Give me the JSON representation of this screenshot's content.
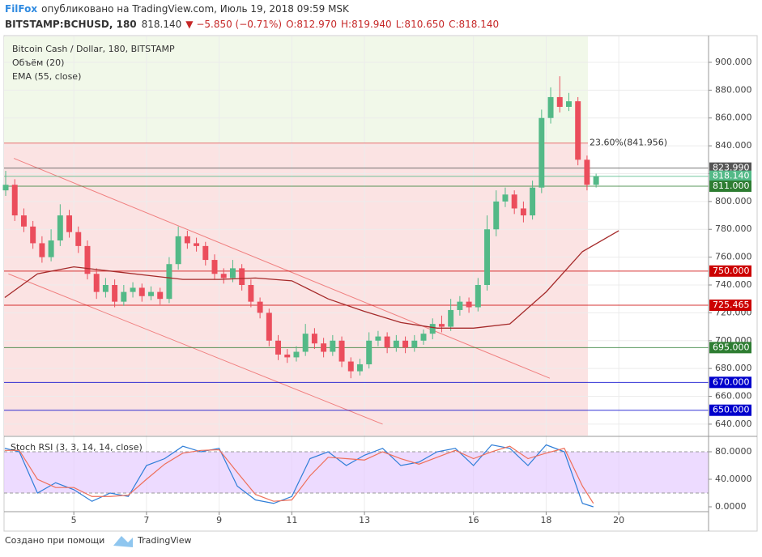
{
  "header": {
    "publisher": "FilFox",
    "published": "опубликовано на TradingView.com, Июль 19, 2018 09:59 MSK",
    "symbol": "BITSTAMP:BCHUSD, 180",
    "price": "818.140",
    "change": "▼ −5.850 (−0.71%)",
    "ohlc": [
      "O:812.970",
      "H:819.940",
      "L:810.650",
      "C:818.140"
    ]
  },
  "footer": {
    "text": "Создано при помощи",
    "brand": "TradingView"
  },
  "chart_data": [
    {
      "type": "candlestick",
      "title": "Bitcoin Cash / Dollar, 180, BITSTAMP",
      "volume_label": "Объём (20)",
      "up_color": "#53b987",
      "down_color": "#eb4d5c",
      "x": [
        3.125,
        3.375,
        3.625,
        3.875,
        4.125,
        4.375,
        4.625,
        4.875,
        5.125,
        5.375,
        5.625,
        5.875,
        6.125,
        6.375,
        6.625,
        6.875,
        7.125,
        7.375,
        7.625,
        7.875,
        8.125,
        8.375,
        8.625,
        8.875,
        9.125,
        9.375,
        9.625,
        9.875,
        10.125,
        10.375,
        10.625,
        10.875,
        11.125,
        11.375,
        11.625,
        11.875,
        12.125,
        12.375,
        12.625,
        12.875,
        13.125,
        13.375,
        13.625,
        13.875,
        14.125,
        14.375,
        14.625,
        14.875,
        15.125,
        15.375,
        15.625,
        15.875,
        16.125,
        16.375,
        16.625,
        16.875,
        17.125,
        17.375,
        17.625,
        17.875,
        18.125,
        18.375,
        18.625,
        18.875,
        19.125,
        19.375
      ],
      "open": [
        808,
        812,
        790,
        782,
        770,
        760,
        772,
        790,
        778,
        768,
        748,
        735,
        740,
        728,
        735,
        738,
        732,
        735,
        730,
        755,
        775,
        770,
        768,
        758,
        748,
        745,
        752,
        740,
        728,
        720,
        700,
        690,
        688,
        692,
        705,
        698,
        692,
        700,
        685,
        678,
        683,
        700,
        703,
        695,
        700,
        695,
        700,
        705,
        712,
        710,
        722,
        728,
        724,
        740,
        780,
        800,
        805,
        795,
        790,
        810,
        860,
        875,
        868,
        872,
        830,
        812
      ],
      "high": [
        822,
        816,
        795,
        786,
        775,
        780,
        798,
        794,
        782,
        772,
        752,
        745,
        744,
        740,
        742,
        741,
        739,
        738,
        760,
        782,
        779,
        774,
        771,
        762,
        752,
        758,
        755,
        744,
        731,
        723,
        704,
        694,
        696,
        712,
        709,
        702,
        704,
        703,
        688,
        687,
        706,
        707,
        706,
        704,
        703,
        704,
        708,
        716,
        718,
        730,
        732,
        731,
        745,
        790,
        808,
        810,
        808,
        800,
        815,
        866,
        882,
        890,
        878,
        875,
        833,
        820
      ],
      "low": [
        804,
        786,
        778,
        766,
        756,
        757,
        768,
        774,
        763,
        744,
        730,
        731,
        724,
        725,
        731,
        728,
        729,
        726,
        727,
        751,
        766,
        764,
        754,
        744,
        741,
        742,
        736,
        724,
        716,
        696,
        686,
        684,
        685,
        689,
        694,
        688,
        689,
        681,
        673,
        675,
        680,
        696,
        691,
        692,
        691,
        692,
        697,
        701,
        706,
        707,
        718,
        720,
        721,
        736,
        775,
        796,
        791,
        785,
        787,
        806,
        856,
        864,
        865,
        826,
        808,
        810
      ],
      "close": [
        812,
        790,
        782,
        770,
        760,
        772,
        790,
        778,
        768,
        748,
        735,
        740,
        728,
        735,
        738,
        732,
        735,
        730,
        755,
        775,
        770,
        768,
        758,
        748,
        745,
        752,
        740,
        728,
        720,
        700,
        690,
        688,
        692,
        705,
        698,
        692,
        700,
        685,
        678,
        683,
        700,
        703,
        695,
        700,
        695,
        700,
        705,
        712,
        710,
        722,
        728,
        724,
        740,
        780,
        800,
        805,
        795,
        790,
        810,
        860,
        875,
        868,
        872,
        830,
        812,
        818
      ],
      "indicators": [
        {
          "name": "EMA (55, close)",
          "color": "#a52a2a",
          "x": [
            3.1,
            4,
            5,
            6,
            7,
            8,
            9,
            10,
            11,
            12,
            13,
            14,
            15,
            16,
            17,
            18,
            19,
            20
          ],
          "values": [
            731,
            748,
            753,
            750,
            747,
            744,
            744,
            745,
            743,
            730,
            721,
            713,
            709,
            709,
            712,
            735,
            764,
            779
          ]
        }
      ],
      "xlim": [
        3.08,
        22.47
      ],
      "xticks": [
        5,
        7,
        9,
        11,
        13,
        16,
        18,
        20
      ],
      "ylim": [
        631.8,
        918.6
      ],
      "yticks": [
        {
          "value": 640,
          "label": "640.000"
        },
        {
          "value": 660,
          "label": "660.000"
        },
        {
          "value": 680,
          "label": "680.000"
        },
        {
          "value": 700,
          "label": "700.000"
        },
        {
          "value": 720,
          "label": "720.000"
        },
        {
          "value": 740,
          "label": "740.000"
        },
        {
          "value": 760,
          "label": "760.000"
        },
        {
          "value": 780,
          "label": "780.000"
        },
        {
          "value": 800,
          "label": "800.000"
        },
        {
          "value": 820,
          "label": "820.000"
        },
        {
          "value": 840,
          "label": "840.000"
        },
        {
          "value": 860,
          "label": "860.000"
        },
        {
          "value": 880,
          "label": "880.000"
        },
        {
          "value": 900,
          "label": "900.000"
        }
      ],
      "grid": true,
      "fib": {
        "value": 841.956,
        "label": "23.60%(841.956)",
        "x_end": 19.15,
        "color": "#e57373"
      },
      "trendlines": [
        {
          "x": [
            3.35,
            18.1
          ],
          "y": [
            831,
            673
          ],
          "color": "#f08080"
        },
        {
          "x": [
            3.2,
            13.5
          ],
          "y": [
            748,
            640
          ],
          "color": "#f08080"
        }
      ],
      "levels": [
        {
          "value": 823.99,
          "label": "823.990",
          "color": "#555555"
        },
        {
          "value": 818.14,
          "label": "818.140",
          "color": "#53b987"
        },
        {
          "value": 811,
          "label": "811.000",
          "color": "#2e7d32"
        },
        {
          "value": 750,
          "label": "750.000",
          "color": "#cc0000"
        },
        {
          "value": 725.465,
          "label": "725.465",
          "color": "#cc0000"
        },
        {
          "value": 695,
          "label": "695.000",
          "color": "#2e7d32"
        },
        {
          "value": 670,
          "label": "670.000",
          "color": "#0000cc"
        },
        {
          "value": 650,
          "label": "650.000",
          "color": "#0000cc"
        }
      ]
    },
    {
      "type": "line",
      "title": "Stoch RSI (3, 3, 14, 14, close)",
      "x": [
        3.1,
        3.5,
        4,
        4.5,
        5,
        5.5,
        6,
        6.5,
        7,
        7.5,
        8,
        8.5,
        9,
        9.5,
        10,
        10.5,
        11,
        11.5,
        12,
        12.5,
        13,
        13.5,
        14,
        14.5,
        15,
        15.5,
        16,
        16.5,
        17,
        17.5,
        18,
        18.5,
        19,
        19.3
      ],
      "series": [
        {
          "color": "#2f7ed8",
          "values": [
            85,
            80,
            20,
            35,
            25,
            8,
            20,
            15,
            60,
            70,
            88,
            80,
            85,
            30,
            10,
            5,
            15,
            70,
            80,
            60,
            75,
            85,
            60,
            65,
            80,
            85,
            60,
            90,
            85,
            60,
            90,
            80,
            5,
            0
          ]
        },
        {
          "color": "#ee6f5a",
          "values": [
            82,
            82,
            40,
            28,
            28,
            15,
            15,
            17,
            40,
            62,
            78,
            82,
            83,
            50,
            18,
            8,
            10,
            45,
            72,
            70,
            68,
            80,
            70,
            62,
            72,
            82,
            70,
            80,
            88,
            70,
            78,
            85,
            30,
            5
          ]
        }
      ],
      "xlim": [
        3.08,
        22.47
      ],
      "ylim": [
        -7.06,
        101.2
      ],
      "band": [
        20,
        80
      ],
      "band_color": "#e6ccff",
      "yticks": [
        {
          "value": 0,
          "label": "0.0000"
        },
        {
          "value": 40,
          "label": "40.0000"
        },
        {
          "value": 80,
          "label": "80.0000"
        }
      ]
    }
  ]
}
